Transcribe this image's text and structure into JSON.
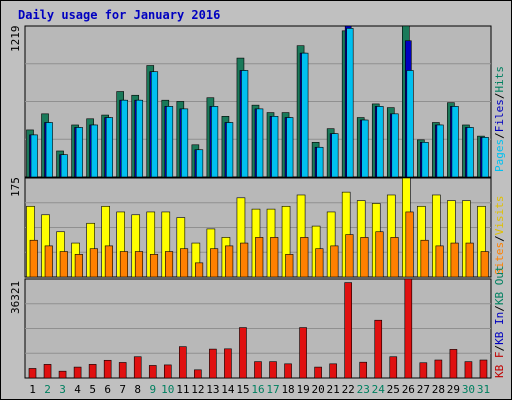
{
  "chart_data": [
    {
      "type": "bar",
      "title": "Daily usage for January 2016",
      "ymax_label": "1219",
      "ylim": [
        0,
        1219
      ],
      "right_legend": [
        {
          "text": "Pages",
          "color": "#00c0f0"
        },
        {
          "text": "/",
          "color": "#000000"
        },
        {
          "text": "Files",
          "color": "#0000c0"
        },
        {
          "text": "/",
          "color": "#000000"
        },
        {
          "text": "Hits",
          "color": "#008060"
        }
      ],
      "categories": [
        "1",
        "2",
        "3",
        "4",
        "5",
        "6",
        "7",
        "8",
        "9",
        "10",
        "11",
        "12",
        "13",
        "14",
        "15",
        "16",
        "17",
        "18",
        "19",
        "20",
        "21",
        "22",
        "23",
        "24",
        "25",
        "26",
        "27",
        "28",
        "29",
        "30",
        "31"
      ],
      "series": [
        {
          "name": "Hits",
          "color": "#1a7a5a",
          "values": [
            380,
            510,
            210,
            420,
            470,
            500,
            690,
            660,
            900,
            620,
            610,
            260,
            640,
            490,
            960,
            580,
            520,
            520,
            1060,
            280,
            390,
            1180,
            480,
            590,
            560,
            1219,
            300,
            440,
            600,
            420,
            330
          ]
        },
        {
          "name": "Files",
          "color": "#0000c0",
          "values": [
            340,
            440,
            180,
            400,
            420,
            480,
            620,
            620,
            850,
            570,
            550,
            220,
            570,
            440,
            860,
            550,
            490,
            480,
            1000,
            240,
            350,
            1220,
            460,
            570,
            510,
            1100,
            280,
            420,
            570,
            400,
            320
          ]
        },
        {
          "name": "Pages",
          "color": "#00c0f0",
          "values": [
            340,
            440,
            180,
            400,
            420,
            480,
            620,
            620,
            850,
            570,
            550,
            220,
            570,
            440,
            860,
            550,
            490,
            480,
            1000,
            240,
            350,
            1200,
            460,
            570,
            510,
            860,
            280,
            420,
            570,
            400,
            320
          ]
        }
      ]
    },
    {
      "type": "bar",
      "ymax_label": "175",
      "ylim": [
        0,
        175
      ],
      "right_legend": [
        {
          "text": "Sites",
          "color": "#ff8000"
        },
        {
          "text": "/",
          "color": "#000000"
        },
        {
          "text": "Visits",
          "color": "#e0c000"
        }
      ],
      "categories": [
        "1",
        "2",
        "3",
        "4",
        "5",
        "6",
        "7",
        "8",
        "9",
        "10",
        "11",
        "12",
        "13",
        "14",
        "15",
        "16",
        "17",
        "18",
        "19",
        "20",
        "21",
        "22",
        "23",
        "24",
        "25",
        "26",
        "27",
        "28",
        "29",
        "30",
        "31"
      ],
      "series": [
        {
          "name": "Visits",
          "color": "#ffff00",
          "values": [
            125,
            110,
            80,
            60,
            95,
            125,
            115,
            110,
            115,
            115,
            105,
            60,
            85,
            70,
            140,
            120,
            120,
            125,
            145,
            90,
            115,
            150,
            135,
            130,
            145,
            175,
            125,
            145,
            135,
            135,
            125
          ]
        },
        {
          "name": "Sites",
          "color": "#ff8000",
          "values": [
            65,
            55,
            45,
            40,
            50,
            55,
            45,
            45,
            40,
            45,
            50,
            25,
            50,
            55,
            60,
            70,
            70,
            40,
            70,
            50,
            55,
            75,
            70,
            80,
            70,
            115,
            65,
            55,
            60,
            60,
            45
          ]
        }
      ]
    },
    {
      "type": "bar",
      "ymax_label": "36321",
      "ylim": [
        0,
        36321
      ],
      "right_legend": [
        {
          "text": "KB F",
          "color": "#c00000"
        },
        {
          "text": "/",
          "color": "#000000"
        },
        {
          "text": "KB In",
          "color": "#0000c0"
        },
        {
          "text": "/",
          "color": "#000000"
        },
        {
          "text": "KB Out",
          "color": "#008060"
        }
      ],
      "categories": [
        "1",
        "2",
        "3",
        "4",
        "5",
        "6",
        "7",
        "8",
        "9",
        "10",
        "11",
        "12",
        "13",
        "14",
        "15",
        "16",
        "17",
        "18",
        "19",
        "20",
        "21",
        "22",
        "23",
        "24",
        "25",
        "26",
        "27",
        "28",
        "29",
        "30",
        "31"
      ],
      "series": [
        {
          "name": "KB F",
          "color": "#e01010",
          "values": [
            3500,
            5000,
            2500,
            4000,
            5000,
            6500,
            5700,
            7800,
            4600,
            4800,
            11500,
            3000,
            10600,
            10700,
            18500,
            6000,
            6000,
            5200,
            18500,
            4000,
            5200,
            35000,
            5800,
            21200,
            7800,
            36321,
            5600,
            6600,
            10500,
            6000,
            6600
          ]
        }
      ]
    }
  ]
}
